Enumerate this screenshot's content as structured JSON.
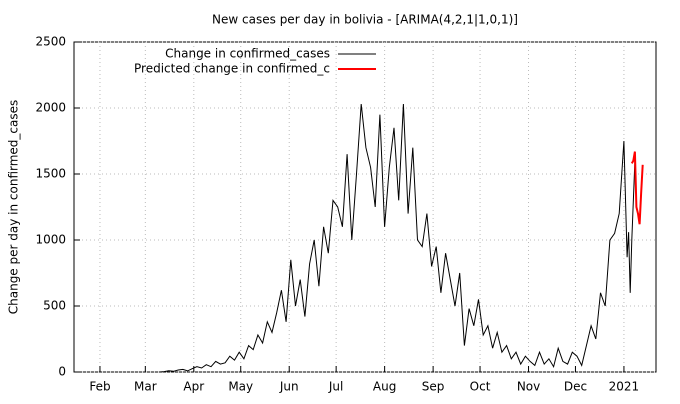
{
  "chart_data": {
    "type": "line",
    "title": "New cases per day in bolivia -  [ARIMA(4,2,1|1,0,1)]",
    "y_label": "Change per day in confirmed_cases",
    "xlim": [
      15.4,
      387.5
    ],
    "xticks": [
      {
        "value": 32,
        "label": "Feb"
      },
      {
        "value": 61,
        "label": "Mar"
      },
      {
        "value": 92,
        "label": "Apr"
      },
      {
        "value": 122,
        "label": "May"
      },
      {
        "value": 153,
        "label": "Jun"
      },
      {
        "value": 183,
        "label": "Jul"
      },
      {
        "value": 214,
        "label": "Aug"
      },
      {
        "value": 245,
        "label": "Sep"
      },
      {
        "value": 275,
        "label": "Oct"
      },
      {
        "value": 306,
        "label": "Nov"
      },
      {
        "value": 336,
        "label": "Dec"
      },
      {
        "value": 367,
        "label": "2021"
      }
    ],
    "ylim": [
      0,
      2500
    ],
    "yticks": [
      0,
      500,
      1000,
      1500,
      2000,
      2500
    ],
    "grid": true,
    "legend": "top-left",
    "series": [
      {
        "name": "Change in confirmed_cases",
        "color": "#000000",
        "x": [
          70,
          73,
          76,
          79,
          82,
          85,
          88,
          91,
          94,
          97,
          100,
          103,
          106,
          109,
          112,
          115,
          118,
          121,
          124,
          127,
          130,
          133,
          136,
          139,
          142,
          145,
          148,
          151,
          154,
          157,
          160,
          163,
          166,
          169,
          172,
          175,
          178,
          181,
          184,
          187,
          190,
          193,
          196,
          199,
          202,
          205,
          208,
          211,
          214,
          217,
          220,
          223,
          226,
          229,
          232,
          235,
          238,
          241,
          244,
          247,
          250,
          253,
          256,
          259,
          262,
          265,
          268,
          271,
          274,
          277,
          280,
          283,
          286,
          289,
          292,
          295,
          298,
          301,
          304,
          307,
          310,
          313,
          316,
          319,
          322,
          325,
          328,
          331,
          334,
          337,
          340,
          343,
          346,
          349,
          352,
          355,
          358,
          361,
          364,
          367,
          369,
          370,
          371,
          372,
          374
        ],
        "values": [
          0,
          3,
          10,
          5,
          15,
          20,
          8,
          25,
          40,
          30,
          55,
          40,
          80,
          60,
          70,
          120,
          90,
          150,
          100,
          200,
          170,
          280,
          220,
          380,
          300,
          450,
          620,
          380,
          850,
          500,
          700,
          420,
          820,
          1000,
          650,
          1100,
          900,
          1300,
          1250,
          1100,
          1650,
          1000,
          1500,
          2030,
          1700,
          1550,
          1250,
          1950,
          1100,
          1550,
          1850,
          1300,
          2030,
          1200,
          1700,
          1000,
          950,
          1200,
          800,
          950,
          600,
          900,
          700,
          500,
          750,
          200,
          480,
          350,
          550,
          280,
          350,
          180,
          300,
          150,
          200,
          100,
          150,
          60,
          120,
          80,
          50,
          150,
          60,
          100,
          40,
          180,
          80,
          60,
          150,
          120,
          50,
          200,
          350,
          250,
          600,
          500,
          1000,
          1050,
          1200,
          1750,
          870,
          1060,
          600,
          1000,
          1600
        ]
      },
      {
        "name": "Predicted change in confirmed_c",
        "color": "#ff0000",
        "x": [
          372,
          373,
          374,
          375,
          376,
          377,
          378,
          379
        ],
        "values": [
          1580,
          1600,
          1670,
          1250,
          1200,
          1120,
          1350,
          1570
        ]
      }
    ]
  }
}
